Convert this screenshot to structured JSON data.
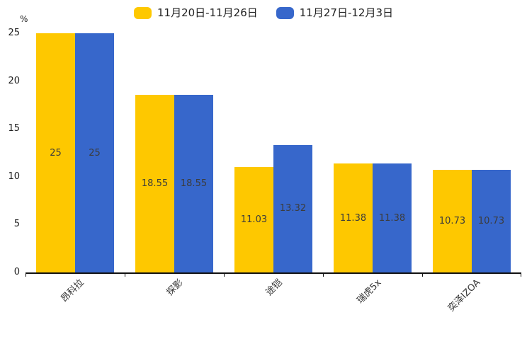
{
  "legend": {
    "items": [
      {
        "label": "11月20日-11月26日",
        "color": "#fec800"
      },
      {
        "label": "11月27日-12月3日",
        "color": "#3767cb"
      }
    ]
  },
  "y_axis": {
    "unit": "%",
    "ticks": [
      0,
      5,
      10,
      15,
      20,
      25
    ]
  },
  "chart_data": {
    "type": "bar",
    "title": "",
    "categories": [
      "昂科拉",
      "探影",
      "途铠",
      "瑞虎5x",
      "奕泽IZOA"
    ],
    "series": [
      {
        "name": "11月20日-11月26日",
        "color": "#fec800",
        "values": [
          25,
          18.55,
          11.03,
          11.38,
          10.73
        ]
      },
      {
        "name": "11月27日-12月3日",
        "color": "#3767cb",
        "values": [
          25,
          18.55,
          13.32,
          11.38,
          10.73
        ]
      }
    ],
    "xlabel": "",
    "ylabel": "%",
    "ylim": [
      0,
      25
    ],
    "yticks": [
      0,
      5,
      10,
      15,
      20,
      25
    ],
    "grid": false,
    "legend_position": "top-center",
    "value_labels": "inside-center",
    "axis_color": "#111111"
  }
}
